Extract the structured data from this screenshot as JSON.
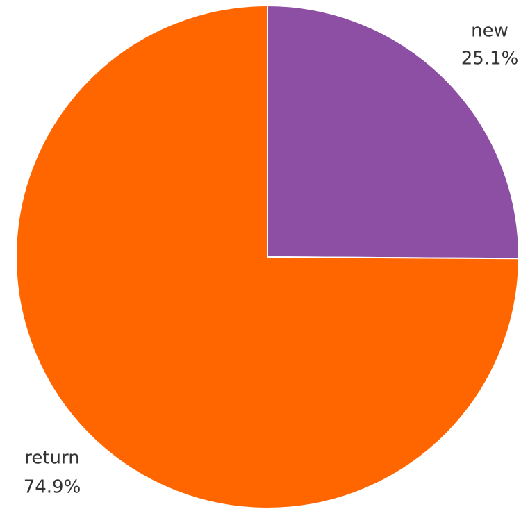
{
  "chart_data": {
    "type": "pie",
    "categories": [
      "new",
      "return"
    ],
    "values": [
      25.1,
      74.9
    ],
    "value_labels": [
      "25.1%",
      "74.9%"
    ],
    "colors": [
      "#8c4fa3",
      "#ff6600"
    ]
  }
}
